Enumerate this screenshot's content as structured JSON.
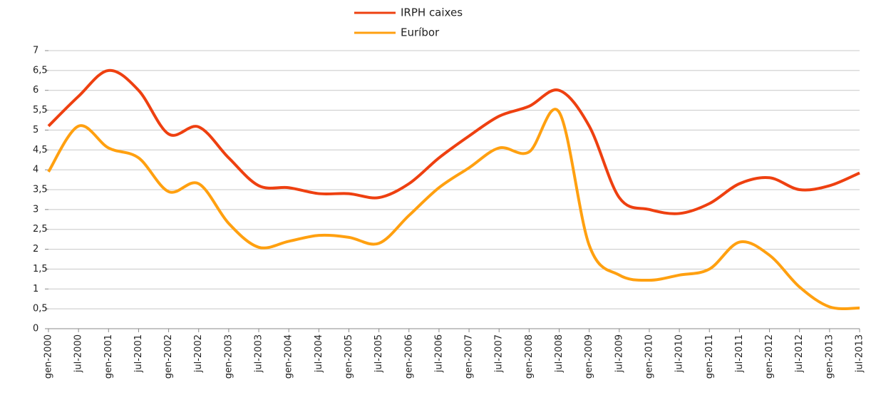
{
  "chart_data": {
    "type": "line",
    "categories": [
      "gen-2000",
      "jul-2000",
      "gen-2001",
      "jul-2001",
      "gen-2002",
      "jul-2002",
      "gen-2003",
      "jul-2003",
      "gen-2004",
      "jul-2004",
      "gen-2005",
      "jul-2005",
      "gen-2006",
      "jul-2006",
      "gen-2007",
      "jul-2007",
      "gen-2008",
      "jul-2008",
      "gen-2009",
      "jul-2009",
      "gen-2010",
      "jul-2010",
      "gen-2011",
      "jul-2011",
      "gen-2012",
      "jul-2012",
      "gen-2013",
      "jul-2013"
    ],
    "series": [
      {
        "name": "IRPH caixes",
        "color": "#ee4010",
        "values": [
          5.1,
          5.85,
          6.5,
          6.0,
          4.9,
          5.08,
          4.3,
          3.6,
          3.55,
          3.4,
          3.4,
          3.3,
          3.65,
          4.3,
          4.85,
          5.35,
          5.6,
          6.0,
          5.1,
          3.3,
          3.0,
          2.9,
          3.15,
          3.65,
          3.8,
          3.5,
          3.6,
          3.92
        ]
      },
      {
        "name": "Euríbor",
        "color": "#ffa010",
        "values": [
          3.95,
          5.1,
          4.55,
          4.3,
          3.45,
          3.65,
          2.65,
          2.05,
          2.2,
          2.35,
          2.3,
          2.15,
          2.85,
          3.55,
          4.05,
          4.55,
          4.45,
          5.45,
          2.1,
          1.35,
          1.22,
          1.35,
          1.5,
          2.18,
          1.85,
          1.05,
          0.55,
          0.52
        ]
      }
    ],
    "ylim": [
      0,
      7
    ],
    "yticks": [
      0,
      {
        "value": 0.5,
        "label": "0,5"
      },
      1,
      {
        "value": 1.5,
        "label": "1,5"
      },
      2,
      {
        "value": 2.5,
        "label": "2,5"
      },
      3,
      {
        "value": 3.5,
        "label": "3,5"
      },
      4,
      {
        "value": 4.5,
        "label": "4,5"
      },
      5,
      {
        "value": 5.5,
        "label": "5,5"
      },
      6,
      {
        "value": 6.5,
        "label": "6,5"
      },
      7
    ],
    "grid": true,
    "legend": "top"
  }
}
